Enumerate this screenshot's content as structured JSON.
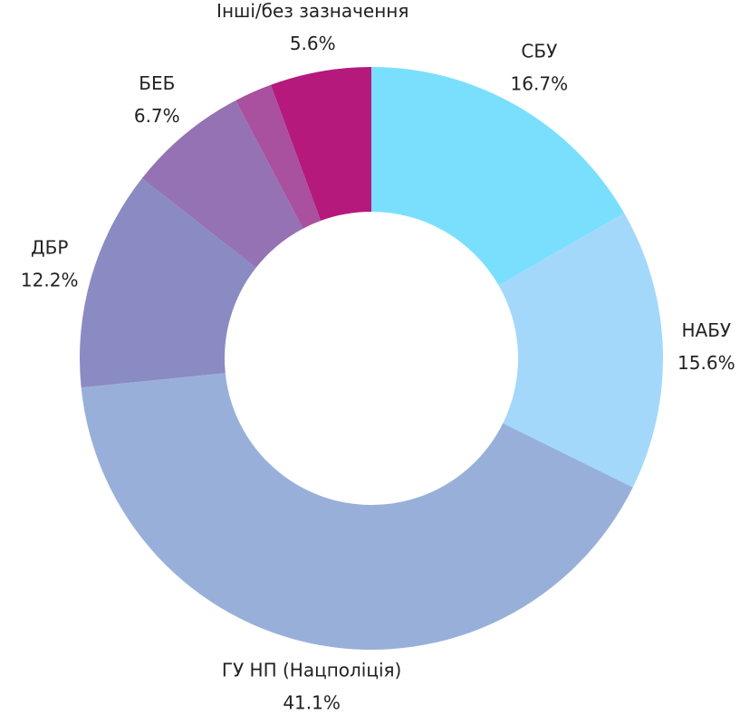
{
  "chart_data": {
    "type": "donut",
    "categories": [
      "СБУ",
      "НАБУ",
      "ГУ НП (Нацполіція)",
      "ДБР",
      "БЕБ",
      null,
      "Інші/без зазначення"
    ],
    "values": [
      16.7,
      15.6,
      41.1,
      12.2,
      6.7,
      2.1,
      5.6
    ],
    "value_labels": [
      "16.7%",
      "15.6%",
      "41.1%",
      "12.2%",
      "6.7%",
      null,
      "5.6%"
    ],
    "colors": [
      "#7adffd",
      "#a3d8fb",
      "#98b0d9",
      "#8a8bc2",
      "#9572b3",
      "#a9509f",
      "#b5197c"
    ]
  }
}
